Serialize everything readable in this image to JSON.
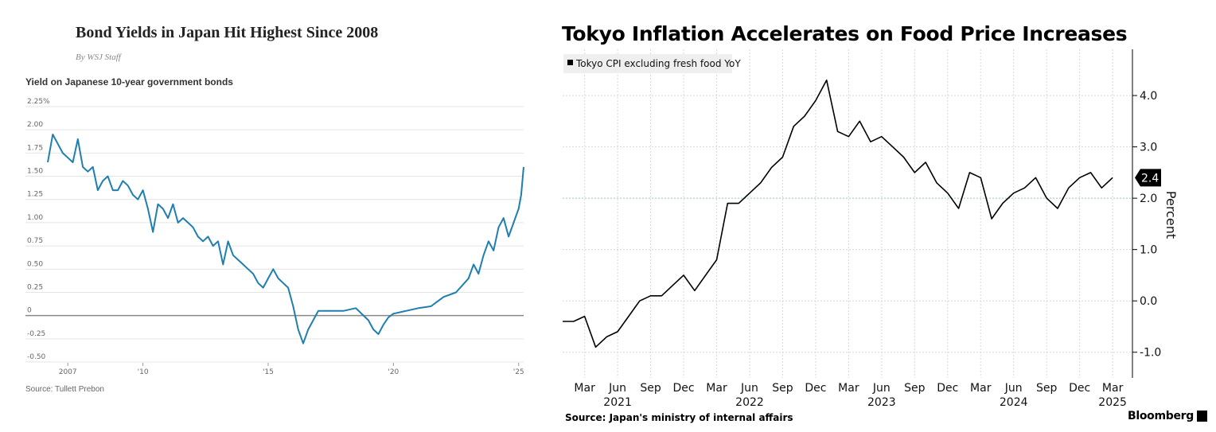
{
  "chart_data": [
    {
      "type": "line",
      "title": "Bond Yields in Japan Hit Highest Since 2008",
      "byline": "By WSJ Staff",
      "subtitle": "Yield on Japanese 10-year government bonds",
      "source": "Source: Tullett Prebon",
      "y_ticks": [
        {
          "value": 2.25,
          "label": "2.25%"
        },
        {
          "value": 2.0,
          "label": "2.00"
        },
        {
          "value": 1.75,
          "label": "1.75"
        },
        {
          "value": 1.5,
          "label": "1.50"
        },
        {
          "value": 1.25,
          "label": "1.25"
        },
        {
          "value": 1.0,
          "label": "1.00"
        },
        {
          "value": 0.75,
          "label": "0.75"
        },
        {
          "value": 0.5,
          "label": "0.50"
        },
        {
          "value": 0.25,
          "label": "0.25"
        },
        {
          "value": 0.0,
          "label": "0"
        },
        {
          "value": -0.25,
          "label": "-0.25"
        },
        {
          "value": -0.5,
          "label": "-0.50"
        }
      ],
      "x_ticks": [
        {
          "value": 2007,
          "label": "2007"
        },
        {
          "value": 2010,
          "label": "'10"
        },
        {
          "value": 2015,
          "label": "'15"
        },
        {
          "value": 2020,
          "label": "'20"
        },
        {
          "value": 2025,
          "label": "'25"
        }
      ],
      "xlim": [
        2006.2,
        2025.2
      ],
      "ylim": [
        -0.5,
        2.25
      ],
      "line_color": "#1f7eb0",
      "x": [
        2006.2,
        2006.4,
        2006.6,
        2006.8,
        2007.0,
        2007.2,
        2007.4,
        2007.6,
        2007.8,
        2008.0,
        2008.2,
        2008.4,
        2008.6,
        2008.8,
        2009.0,
        2009.2,
        2009.4,
        2009.6,
        2009.8,
        2010.0,
        2010.2,
        2010.4,
        2010.6,
        2010.8,
        2011.0,
        2011.2,
        2011.4,
        2011.6,
        2011.8,
        2012.0,
        2012.2,
        2012.4,
        2012.6,
        2012.8,
        2013.0,
        2013.2,
        2013.4,
        2013.6,
        2013.8,
        2014.0,
        2014.2,
        2014.4,
        2014.6,
        2014.8,
        2015.0,
        2015.2,
        2015.4,
        2015.6,
        2015.8,
        2016.0,
        2016.2,
        2016.4,
        2016.6,
        2016.8,
        2017.0,
        2017.5,
        2018.0,
        2018.5,
        2019.0,
        2019.2,
        2019.4,
        2019.6,
        2019.8,
        2020.0,
        2020.5,
        2021.0,
        2021.5,
        2022.0,
        2022.5,
        2023.0,
        2023.2,
        2023.4,
        2023.6,
        2023.8,
        2024.0,
        2024.2,
        2024.4,
        2024.6,
        2024.8,
        2025.0,
        2025.1,
        2025.2
      ],
      "values": [
        1.65,
        1.95,
        1.85,
        1.75,
        1.7,
        1.65,
        1.9,
        1.6,
        1.55,
        1.6,
        1.35,
        1.45,
        1.5,
        1.35,
        1.35,
        1.45,
        1.4,
        1.3,
        1.25,
        1.35,
        1.15,
        0.9,
        1.2,
        1.15,
        1.05,
        1.2,
        1.0,
        1.05,
        1.0,
        0.95,
        0.85,
        0.8,
        0.85,
        0.75,
        0.8,
        0.55,
        0.8,
        0.65,
        0.6,
        0.55,
        0.5,
        0.45,
        0.35,
        0.3,
        0.4,
        0.5,
        0.4,
        0.35,
        0.3,
        0.1,
        -0.15,
        -0.3,
        -0.15,
        -0.05,
        0.05,
        0.05,
        0.05,
        0.08,
        -0.05,
        -0.15,
        -0.2,
        -0.1,
        -0.02,
        0.02,
        0.05,
        0.08,
        0.1,
        0.2,
        0.25,
        0.4,
        0.55,
        0.45,
        0.65,
        0.8,
        0.7,
        0.95,
        1.05,
        0.85,
        1.0,
        1.15,
        1.3,
        1.6
      ]
    },
    {
      "type": "line",
      "title": "Tokyo Inflation Accelerates on Food Price Increases",
      "legend_label": "Tokyo CPI excluding fresh food YoY",
      "ylabel": "Percent",
      "source": "Source: Japan's ministry of internal affairs",
      "brand": "Bloomberg",
      "last_value_label": "2.4",
      "reference_line": 2.0,
      "ylim": [
        -1.5,
        4.9
      ],
      "y_ticks": [
        {
          "value": 4.0,
          "label": "4.0"
        },
        {
          "value": 3.0,
          "label": "3.0"
        },
        {
          "value": 2.0,
          "label": "2.0"
        },
        {
          "value": 1.0,
          "label": "1.0"
        },
        {
          "value": 0.0,
          "label": "0.0"
        },
        {
          "value": -1.0,
          "label": "-1.0"
        }
      ],
      "x_ticks": [
        {
          "index": 2,
          "label": "Mar"
        },
        {
          "index": 5,
          "label": "Jun"
        },
        {
          "index": 8,
          "label": "Sep"
        },
        {
          "index": 11,
          "label": "Dec"
        },
        {
          "index": 14,
          "label": "Mar"
        },
        {
          "index": 17,
          "label": "Jun"
        },
        {
          "index": 20,
          "label": "Sep"
        },
        {
          "index": 23,
          "label": "Dec"
        },
        {
          "index": 26,
          "label": "Mar"
        },
        {
          "index": 29,
          "label": "Jun"
        },
        {
          "index": 32,
          "label": "Sep"
        },
        {
          "index": 35,
          "label": "Dec"
        },
        {
          "index": 38,
          "label": "Mar"
        },
        {
          "index": 41,
          "label": "Jun"
        },
        {
          "index": 44,
          "label": "Sep"
        },
        {
          "index": 47,
          "label": "Dec"
        },
        {
          "index": 50,
          "label": "Mar"
        }
      ],
      "year_labels": [
        {
          "index": 5,
          "label": "2021"
        },
        {
          "index": 17,
          "label": "2022"
        },
        {
          "index": 29,
          "label": "2023"
        },
        {
          "index": 41,
          "label": "2024"
        },
        {
          "index": 50,
          "label": "2025"
        }
      ],
      "months": [
        "Jan 2021",
        "Feb 2021",
        "Mar 2021",
        "Apr 2021",
        "May 2021",
        "Jun 2021",
        "Jul 2021",
        "Aug 2021",
        "Sep 2021",
        "Oct 2021",
        "Nov 2021",
        "Dec 2021",
        "Jan 2022",
        "Feb 2022",
        "Mar 2022",
        "Apr 2022",
        "May 2022",
        "Jun 2022",
        "Jul 2022",
        "Aug 2022",
        "Sep 2022",
        "Oct 2022",
        "Nov 2022",
        "Dec 2022",
        "Jan 2023",
        "Feb 2023",
        "Mar 2023",
        "Apr 2023",
        "May 2023",
        "Jun 2023",
        "Jul 2023",
        "Aug 2023",
        "Sep 2023",
        "Oct 2023",
        "Nov 2023",
        "Dec 2023",
        "Jan 2024",
        "Feb 2024",
        "Mar 2024",
        "Apr 2024",
        "May 2024",
        "Jun 2024",
        "Jul 2024",
        "Aug 2024",
        "Sep 2024",
        "Oct 2024",
        "Nov 2024",
        "Dec 2024",
        "Jan 2025",
        "Feb 2025",
        "Mar 2025"
      ],
      "values": [
        -0.4,
        -0.4,
        -0.3,
        -0.9,
        -0.7,
        -0.6,
        -0.3,
        0.0,
        0.1,
        0.1,
        0.3,
        0.5,
        0.2,
        0.5,
        0.8,
        1.9,
        1.9,
        2.1,
        2.3,
        2.6,
        2.8,
        3.4,
        3.6,
        3.9,
        4.3,
        3.3,
        3.2,
        3.5,
        3.1,
        3.2,
        3.0,
        2.8,
        2.5,
        2.7,
        2.3,
        2.1,
        1.8,
        2.5,
        2.4,
        1.6,
        1.9,
        2.1,
        2.2,
        2.4,
        2.0,
        1.8,
        2.2,
        2.4,
        2.5,
        2.2,
        2.4
      ]
    }
  ]
}
